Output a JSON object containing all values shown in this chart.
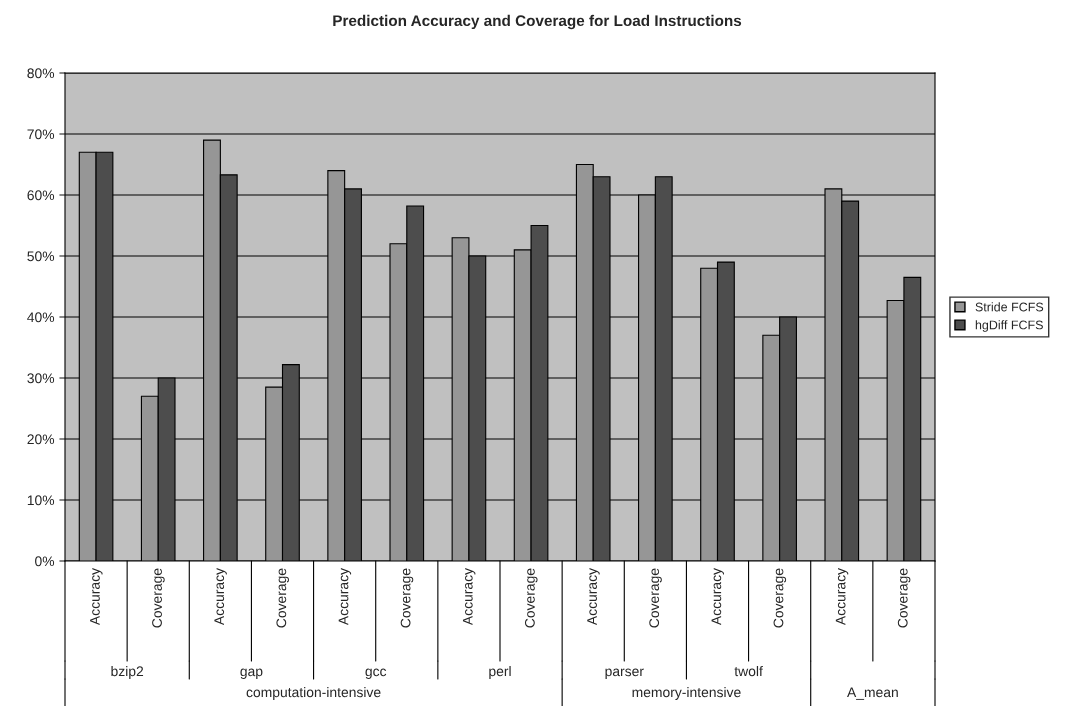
{
  "chart_data": {
    "type": "bar",
    "title": "Prediction Accuracy and Coverage for Load Instructions",
    "categories": [
      "Accuracy",
      "Coverage",
      "Accuracy",
      "Coverage",
      "Accuracy",
      "Coverage",
      "Accuracy",
      "Coverage",
      "Accuracy",
      "Coverage",
      "Accuracy",
      "Coverage",
      "Accuracy",
      "Coverage"
    ],
    "series": [
      {
        "name": "Stride FCFS",
        "color": "#969696",
        "values": [
          67,
          27,
          69,
          28.5,
          64,
          52,
          53,
          51,
          65,
          60,
          48,
          37,
          61,
          42.7
        ]
      },
      {
        "name": "hgDiff FCFS",
        "color": "#4d4d4d",
        "values": [
          67,
          30,
          63.3,
          32.2,
          61,
          58.2,
          50,
          55,
          63,
          63,
          49,
          40,
          59,
          46.5
        ]
      }
    ],
    "annotations": [
      "bzip2",
      "gap",
      "gcc",
      "perl",
      "parser",
      "twolf",
      "computation-intensive",
      "memory-intensive",
      "A_mean"
    ],
    "ylim": [
      0,
      80
    ],
    "yticks": [
      {
        "value": 0,
        "label": "0%"
      },
      {
        "value": 10,
        "label": "10%"
      },
      {
        "value": 20,
        "label": "20%"
      },
      {
        "value": 30,
        "label": "30%"
      },
      {
        "value": 40,
        "label": "40%"
      },
      {
        "value": 50,
        "label": "50%"
      },
      {
        "value": 60,
        "label": "60%"
      },
      {
        "value": 70,
        "label": "70%"
      },
      {
        "value": 80,
        "label": "80%"
      }
    ],
    "grid": "y",
    "legend": "right"
  }
}
